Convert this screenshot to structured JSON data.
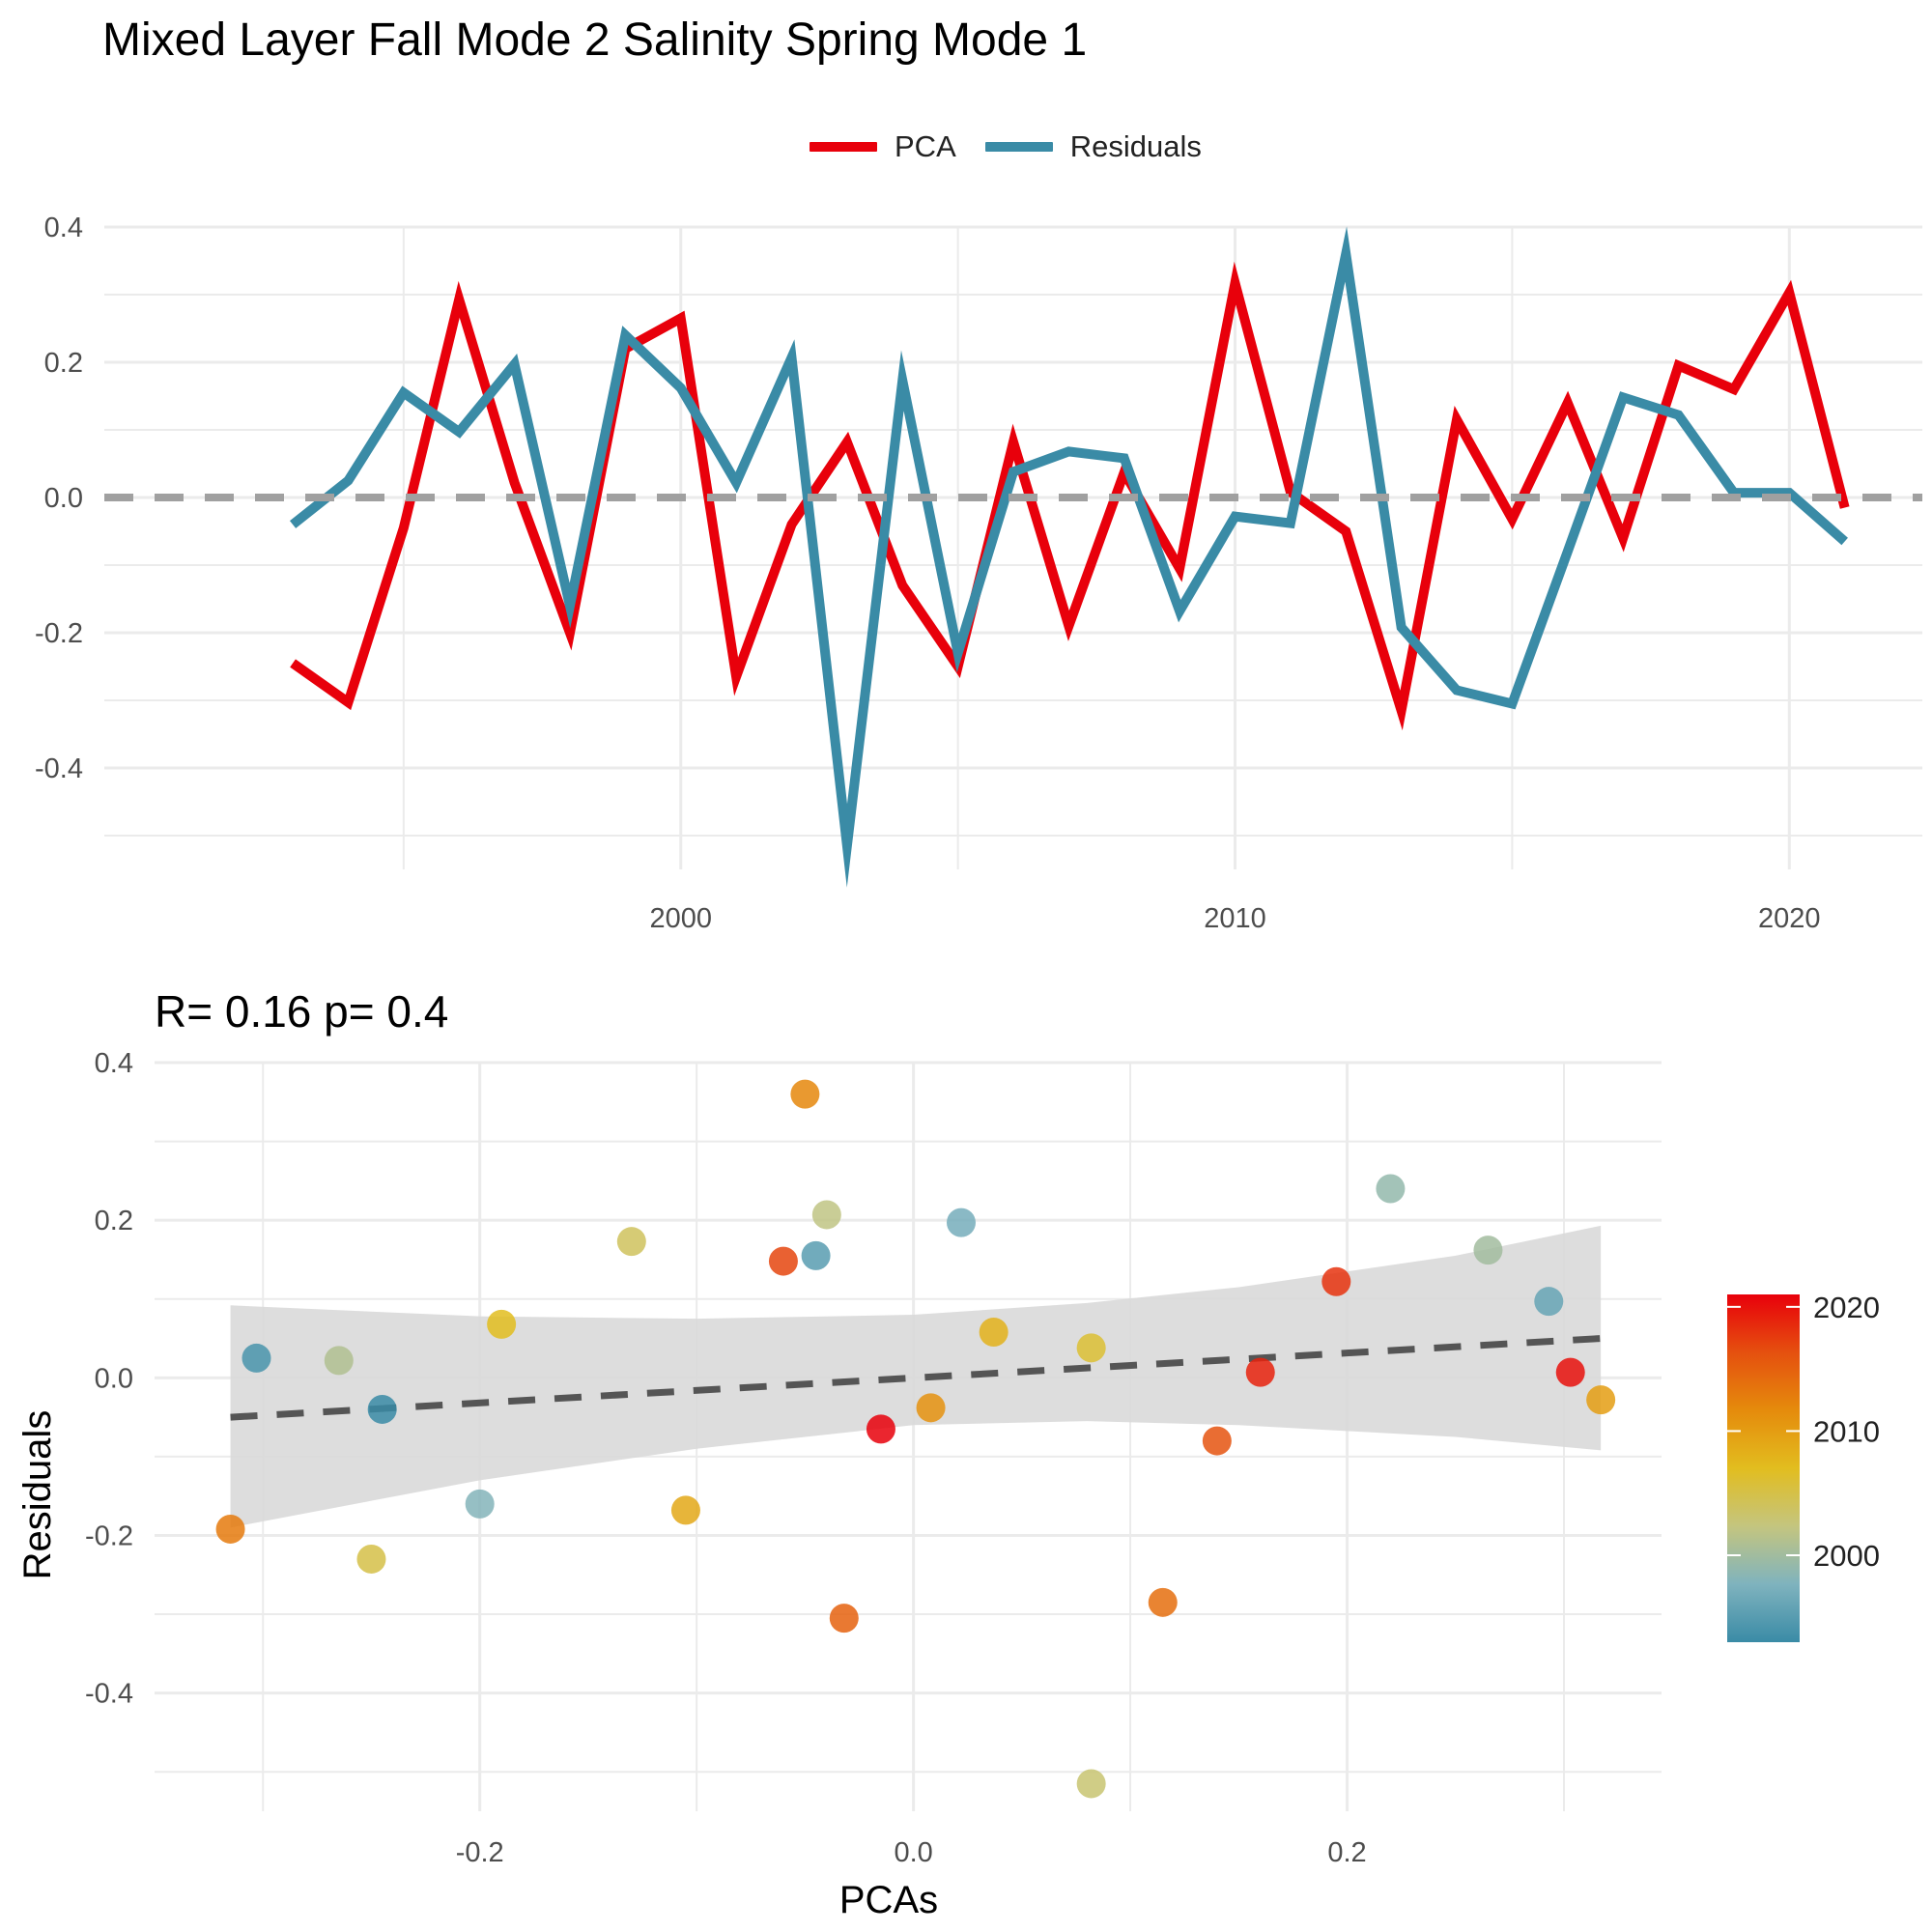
{
  "title": "Mixed Layer Fall Mode 2 Salinity Spring Mode 1",
  "chart_data": [
    {
      "type": "line",
      "legend": [
        {
          "name": "PCA",
          "color": "#E8000B"
        },
        {
          "name": "Residuals",
          "color": "#3A8BA6"
        }
      ],
      "legend_position": "top",
      "x": [
        1993,
        1994,
        1995,
        1996,
        1997,
        1998,
        1999,
        2000,
        2001,
        2002,
        2003,
        2004,
        2005,
        2006,
        2007,
        2008,
        2009,
        2010,
        2011,
        2012,
        2013,
        2014,
        2015,
        2016,
        2017,
        2018,
        2019,
        2020,
        2021
      ],
      "series": [
        {
          "name": "PCA",
          "color": "#E8000B",
          "values": [
            -0.245,
            -0.303,
            -0.045,
            0.293,
            0.022,
            -0.2,
            0.22,
            0.265,
            -0.265,
            -0.04,
            0.082,
            -0.13,
            -0.25,
            0.082,
            -0.19,
            0.037,
            -0.105,
            0.317,
            0.008,
            -0.05,
            -0.315,
            0.115,
            -0.032,
            0.14,
            -0.06,
            0.195,
            0.16,
            0.303,
            -0.015
          ]
        },
        {
          "name": "Residuals",
          "color": "#3A8BA6",
          "values": [
            -0.04,
            0.025,
            0.155,
            0.097,
            0.197,
            -0.16,
            0.24,
            0.162,
            0.022,
            0.207,
            -0.515,
            0.173,
            -0.23,
            0.038,
            0.068,
            0.058,
            -0.168,
            -0.028,
            -0.038,
            0.36,
            -0.192,
            -0.285,
            -0.305,
            -0.08,
            0.148,
            0.122,
            0.007,
            0.007,
            -0.065
          ]
        }
      ],
      "x_ticks": [
        2000,
        2010,
        2020
      ],
      "y_ticks": [
        -0.4,
        -0.2,
        0.0,
        0.2,
        0.4
      ],
      "xlim": [
        1989.6,
        2022.4
      ],
      "ylim": [
        -0.55,
        0.4
      ],
      "zero_line": {
        "value": 0,
        "style": "dashed",
        "color": "#A0A0A0"
      },
      "grid": true
    },
    {
      "type": "scatter",
      "subtitle": "R= 0.16  p= 0.4",
      "xlabel": "PCAs",
      "ylabel": "Residuals",
      "xlim": [
        -0.35,
        0.345
      ],
      "ylim": [
        -0.55,
        0.4
      ],
      "x_ticks": [
        -0.2,
        0.0,
        0.2
      ],
      "y_ticks": [
        -0.4,
        -0.2,
        0.0,
        0.2,
        0.4
      ],
      "grid": true,
      "points": [
        {
          "year": 1993,
          "x": -0.245,
          "y": -0.04
        },
        {
          "year": 1994,
          "x": -0.303,
          "y": 0.025
        },
        {
          "year": 1995,
          "x": -0.045,
          "y": 0.155
        },
        {
          "year": 1996,
          "x": 0.293,
          "y": 0.097
        },
        {
          "year": 1997,
          "x": 0.022,
          "y": 0.197
        },
        {
          "year": 1998,
          "x": -0.2,
          "y": -0.16
        },
        {
          "year": 1999,
          "x": 0.22,
          "y": 0.24
        },
        {
          "year": 2000,
          "x": 0.265,
          "y": 0.162
        },
        {
          "year": 2001,
          "x": -0.265,
          "y": 0.022
        },
        {
          "year": 2002,
          "x": -0.04,
          "y": 0.207
        },
        {
          "year": 2003,
          "x": 0.082,
          "y": -0.515
        },
        {
          "year": 2004,
          "x": -0.13,
          "y": 0.173
        },
        {
          "year": 2005,
          "x": -0.25,
          "y": -0.23
        },
        {
          "year": 2006,
          "x": 0.082,
          "y": 0.038
        },
        {
          "year": 2007,
          "x": -0.19,
          "y": 0.068
        },
        {
          "year": 2008,
          "x": 0.037,
          "y": 0.058
        },
        {
          "year": 2009,
          "x": -0.105,
          "y": -0.168
        },
        {
          "year": 2010,
          "x": 0.317,
          "y": -0.028
        },
        {
          "year": 2011,
          "x": 0.008,
          "y": -0.038
        },
        {
          "year": 2012,
          "x": -0.05,
          "y": 0.36
        },
        {
          "year": 2013,
          "x": -0.315,
          "y": -0.192
        },
        {
          "year": 2014,
          "x": 0.115,
          "y": -0.285
        },
        {
          "year": 2015,
          "x": -0.032,
          "y": -0.305
        },
        {
          "year": 2016,
          "x": 0.14,
          "y": -0.08
        },
        {
          "year": 2017,
          "x": -0.06,
          "y": 0.148
        },
        {
          "year": 2018,
          "x": 0.195,
          "y": 0.122
        },
        {
          "year": 2019,
          "x": 0.16,
          "y": 0.007
        },
        {
          "year": 2020,
          "x": 0.303,
          "y": 0.007
        },
        {
          "year": 2021,
          "x": -0.015,
          "y": -0.065
        }
      ],
      "fit_line": {
        "x": [
          -0.315,
          0.317
        ],
        "y": [
          -0.05,
          0.05
        ],
        "style": "dashed",
        "color": "#555555"
      },
      "confidence_band": {
        "x": [
          -0.315,
          -0.2,
          -0.1,
          0.0,
          0.08,
          0.15,
          0.25,
          0.317
        ],
        "upper": [
          0.092,
          0.078,
          0.075,
          0.08,
          0.095,
          0.115,
          0.155,
          0.193
        ],
        "lower": [
          -0.19,
          -0.13,
          -0.09,
          -0.06,
          -0.055,
          -0.06,
          -0.075,
          -0.092
        ],
        "color": "#D9D9D9"
      },
      "colorbar": {
        "ticks": [
          2000,
          2010,
          2020
        ],
        "range": [
          1993,
          2021
        ],
        "colors": [
          "#3A8BA6",
          "#7FB3BE",
          "#C4C57F",
          "#E2BD1F",
          "#E58B0C",
          "#E5500F",
          "#E8000B"
        ]
      }
    }
  ]
}
